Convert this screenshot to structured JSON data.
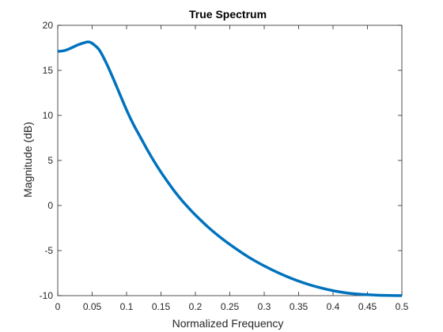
{
  "chart_data": {
    "type": "line",
    "title": "True Spectrum",
    "xlabel": "Normalized Frequency",
    "ylabel": "Magnitude (dB)",
    "xlim": [
      0,
      0.5
    ],
    "ylim": [
      -10,
      20
    ],
    "xticks": [
      "0",
      "0.05",
      "0.1",
      "0.15",
      "0.2",
      "0.25",
      "0.3",
      "0.35",
      "0.4",
      "0.45",
      "0.5"
    ],
    "yticks": [
      "-10",
      "-5",
      "0",
      "5",
      "10",
      "15",
      "20"
    ],
    "grid": false,
    "series": [
      {
        "color": "#0072bd",
        "x": [
          0,
          0.01,
          0.02,
          0.03,
          0.04,
          0.045,
          0.05,
          0.06,
          0.07,
          0.08,
          0.09,
          0.1,
          0.11,
          0.12,
          0.13,
          0.14,
          0.15,
          0.16,
          0.17,
          0.18,
          0.19,
          0.2,
          0.22,
          0.24,
          0.26,
          0.28,
          0.3,
          0.32,
          0.34,
          0.36,
          0.38,
          0.4,
          0.42,
          0.44,
          0.46,
          0.48,
          0.5
        ],
        "y": [
          17.1,
          17.2,
          17.5,
          17.85,
          18.1,
          18.15,
          18.0,
          17.3,
          15.9,
          14.2,
          12.4,
          10.6,
          9.0,
          7.6,
          6.2,
          4.9,
          3.7,
          2.6,
          1.55,
          0.6,
          -0.25,
          -1.05,
          -2.5,
          -3.75,
          -4.85,
          -5.85,
          -6.7,
          -7.45,
          -8.1,
          -8.65,
          -9.1,
          -9.45,
          -9.7,
          -9.85,
          -9.93,
          -9.98,
          -10.0
        ]
      }
    ]
  }
}
